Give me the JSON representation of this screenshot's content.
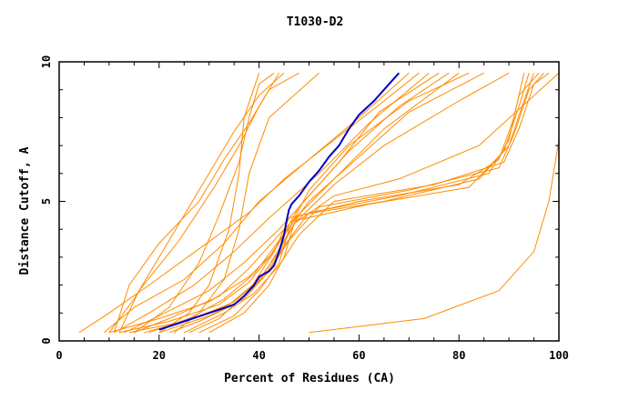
{
  "chart_data": {
    "type": "line",
    "title": "T1030-D2",
    "xlabel": "Percent of Residues (CA)",
    "ylabel": "Distance Cutoff, A",
    "xlim": [
      0,
      100
    ],
    "ylim": [
      0,
      10
    ],
    "xticks": [
      0,
      20,
      40,
      60,
      80,
      100
    ],
    "yticks": [
      0,
      5,
      10
    ],
    "grid": false,
    "legend": "none",
    "colors": {
      "models": "#ff8c00",
      "highlight": "#0000cd",
      "axes": "#000000"
    },
    "highlight_series": {
      "x": [
        20,
        25,
        30,
        35,
        37,
        39,
        40,
        42,
        43,
        44,
        45,
        45.5,
        46,
        46.5,
        48,
        50,
        52,
        54,
        56,
        57,
        58,
        60,
        63,
        66,
        68
      ],
      "y": [
        0.4,
        0.7,
        1.0,
        1.3,
        1.6,
        2.0,
        2.3,
        2.5,
        2.7,
        3.2,
        3.8,
        4.3,
        4.7,
        4.9,
        5.2,
        5.7,
        6.1,
        6.6,
        7.0,
        7.3,
        7.6,
        8.1,
        8.6,
        9.2,
        9.6
      ]
    },
    "series": [
      {
        "x": [
          4,
          10,
          18,
          28,
          38,
          45,
          55,
          65,
          72
        ],
        "y": [
          0.3,
          1.0,
          2.0,
          3.3,
          4.6,
          5.8,
          7.2,
          8.6,
          9.6
        ]
      },
      {
        "x": [
          9,
          15,
          25,
          33,
          40,
          50,
          60,
          70
        ],
        "y": [
          0.3,
          1.2,
          2.2,
          3.5,
          5.0,
          6.5,
          8.0,
          9.6
        ]
      },
      {
        "x": [
          11,
          18,
          27,
          35,
          42,
          52,
          62,
          74
        ],
        "y": [
          0.3,
          1.0,
          2.0,
          3.2,
          4.4,
          6.0,
          7.8,
          9.6
        ]
      },
      {
        "x": [
          13,
          20,
          30,
          37,
          44,
          50,
          58,
          68,
          78
        ],
        "y": [
          0.3,
          0.9,
          1.8,
          2.8,
          4.0,
          5.2,
          6.8,
          8.4,
          9.6
        ]
      },
      {
        "x": [
          15,
          22,
          32,
          38,
          45,
          55,
          65,
          80
        ],
        "y": [
          0.3,
          0.8,
          1.6,
          2.6,
          4.0,
          5.8,
          7.6,
          9.6
        ]
      },
      {
        "x": [
          18,
          26,
          33,
          39,
          44,
          50,
          60,
          70,
          85
        ],
        "y": [
          0.3,
          0.8,
          1.5,
          2.4,
          3.6,
          5.0,
          6.6,
          8.2,
          9.6
        ]
      },
      {
        "x": [
          22,
          28,
          35,
          40,
          43,
          47,
          55,
          65,
          80,
          90
        ],
        "y": [
          0.3,
          0.7,
          1.3,
          2.1,
          3.0,
          4.2,
          5.6,
          7.0,
          8.6,
          9.6
        ]
      },
      {
        "x": [
          10,
          20,
          30,
          38,
          43,
          46,
          60,
          80,
          88,
          91,
          93
        ],
        "y": [
          0.3,
          0.8,
          1.4,
          2.3,
          3.2,
          4.4,
          5.0,
          5.6,
          6.5,
          8.0,
          9.6
        ]
      },
      {
        "x": [
          12,
          22,
          32,
          38,
          42,
          47,
          62,
          82,
          89,
          92,
          94
        ],
        "y": [
          0.3,
          0.7,
          1.3,
          2.1,
          3.0,
          4.3,
          4.9,
          5.5,
          6.8,
          8.4,
          9.6
        ]
      },
      {
        "x": [
          14,
          25,
          34,
          40,
          44,
          48,
          65,
          84,
          90,
          93,
          95
        ],
        "y": [
          0.3,
          0.7,
          1.3,
          2.2,
          3.2,
          4.5,
          5.0,
          5.8,
          7.0,
          8.6,
          9.6
        ]
      },
      {
        "x": [
          17,
          27,
          35,
          41,
          45,
          50,
          68,
          86,
          90,
          92,
          96
        ],
        "y": [
          0.3,
          0.8,
          1.4,
          2.3,
          3.4,
          4.6,
          5.2,
          6.0,
          7.2,
          8.8,
          9.6
        ]
      },
      {
        "x": [
          20,
          30,
          37,
          42,
          46,
          52,
          70,
          88,
          91,
          94,
          97
        ],
        "y": [
          0.3,
          0.9,
          1.5,
          2.5,
          3.6,
          4.8,
          5.4,
          6.2,
          7.4,
          9.0,
          9.6
        ]
      },
      {
        "x": [
          25,
          33,
          39,
          44,
          48,
          55,
          75,
          89,
          92,
          95,
          98
        ],
        "y": [
          0.3,
          1.0,
          1.7,
          2.7,
          3.8,
          5.0,
          5.6,
          6.4,
          7.6,
          9.2,
          9.6
        ]
      },
      {
        "x": [
          10,
          15,
          20,
          25,
          30,
          35,
          40,
          45
        ],
        "y": [
          0.3,
          1.5,
          3.0,
          4.5,
          6.0,
          7.5,
          8.8,
          9.6
        ]
      },
      {
        "x": [
          11,
          14,
          20,
          28,
          33,
          38,
          42,
          48
        ],
        "y": [
          0.3,
          2.0,
          3.5,
          5.0,
          6.5,
          7.8,
          9.0,
          9.6
        ]
      },
      {
        "x": [
          12,
          16,
          24,
          31,
          36,
          40,
          44
        ],
        "y": [
          0.3,
          1.8,
          3.6,
          5.5,
          7.0,
          8.4,
          9.6
        ]
      },
      {
        "x": [
          15,
          22,
          28,
          32,
          36,
          38,
          40,
          43
        ],
        "y": [
          0.3,
          1.2,
          2.8,
          4.5,
          6.4,
          8.0,
          9.2,
          9.6
        ]
      },
      {
        "x": [
          20,
          26,
          30,
          34,
          36,
          37,
          40
        ],
        "y": [
          0.3,
          1.0,
          2.0,
          4.0,
          6.0,
          8.0,
          9.6
        ]
      },
      {
        "x": [
          23,
          28,
          33,
          36,
          38,
          42,
          52
        ],
        "y": [
          0.3,
          1.0,
          2.2,
          4.0,
          6.0,
          8.0,
          9.6
        ]
      },
      {
        "x": [
          26,
          32,
          38,
          43,
          48,
          56,
          64,
          76
        ],
        "y": [
          0.3,
          0.8,
          1.8,
          3.2,
          4.8,
          6.4,
          8.2,
          9.6
        ]
      },
      {
        "x": [
          28,
          35,
          40,
          44,
          46,
          50,
          58,
          70,
          82
        ],
        "y": [
          0.3,
          0.9,
          1.8,
          2.8,
          4.0,
          5.4,
          7.0,
          8.6,
          9.6
        ]
      },
      {
        "x": [
          30,
          37,
          42,
          45,
          47,
          55,
          68,
          84,
          100
        ],
        "y": [
          0.3,
          1.0,
          2.0,
          3.0,
          4.2,
          5.2,
          5.8,
          7.0,
          9.6
        ]
      },
      {
        "x": [
          50,
          73,
          88,
          95,
          98,
          100,
          100
        ],
        "y": [
          0.3,
          0.8,
          1.8,
          3.2,
          5.0,
          7.2,
          9.6
        ]
      }
    ]
  }
}
